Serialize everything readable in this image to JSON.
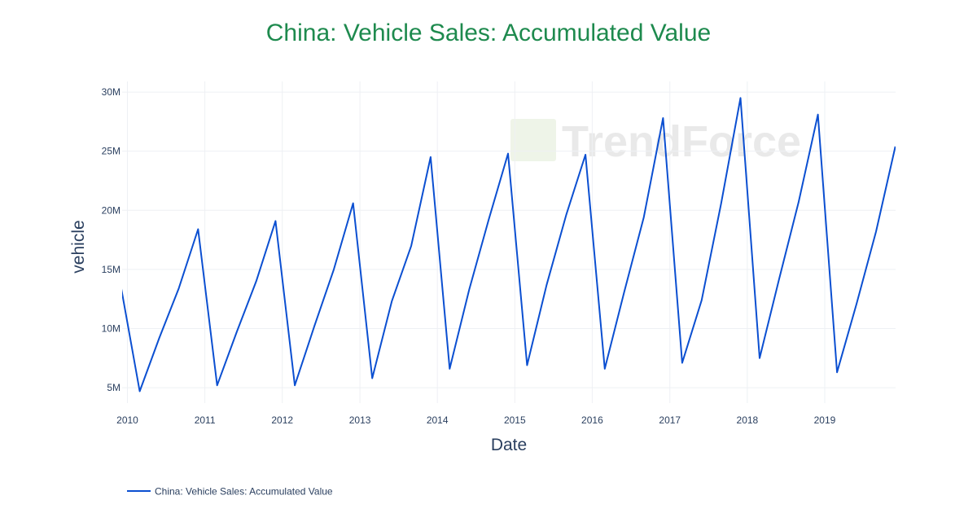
{
  "colors": {
    "title": "#1e8a4e",
    "line": "#0b4fd1",
    "grid": "#eef0f4",
    "axis_text": "#2a3f5f",
    "watermark": "#e6e6e6",
    "watermark_logo": "#e8efdf"
  },
  "watermark_text": "TrendForce",
  "chart_data": {
    "type": "line",
    "title": "China: Vehicle Sales: Accumulated Value",
    "xlabel": "Date",
    "ylabel": "vehicle",
    "xlim": [
      "2009-12-07",
      "2019-12-01"
    ],
    "ylim": [
      3700000,
      30900000
    ],
    "grid": true,
    "legend_position": "bottom-left",
    "x_ticks": [
      "2010",
      "2011",
      "2012",
      "2013",
      "2014",
      "2015",
      "2016",
      "2017",
      "2018",
      "2019"
    ],
    "y_ticks": [
      {
        "value": 5000000,
        "label": "5M"
      },
      {
        "value": 10000000,
        "label": "10M"
      },
      {
        "value": 15000000,
        "label": "15M"
      },
      {
        "value": 20000000,
        "label": "20M"
      },
      {
        "value": 25000000,
        "label": "25M"
      },
      {
        "value": 30000000,
        "label": "30M"
      }
    ],
    "series": [
      {
        "name": "China: Vehicle Sales: Accumulated Value",
        "x": [
          "2009-12-01",
          "2010-02-28",
          "2010-05-31",
          "2010-08-31",
          "2010-11-30",
          "2011-02-28",
          "2011-05-31",
          "2011-08-31",
          "2011-11-30",
          "2012-02-29",
          "2012-05-31",
          "2012-08-31",
          "2012-11-30",
          "2013-02-28",
          "2013-05-31",
          "2013-08-31",
          "2013-11-30",
          "2014-02-28",
          "2014-05-31",
          "2014-08-31",
          "2014-11-30",
          "2015-02-28",
          "2015-05-31",
          "2015-08-31",
          "2015-11-30",
          "2016-02-29",
          "2016-05-31",
          "2016-08-31",
          "2016-11-30",
          "2017-02-28",
          "2017-05-31",
          "2017-08-31",
          "2017-11-30",
          "2018-02-28",
          "2018-05-31",
          "2018-08-31",
          "2018-11-30",
          "2019-02-28",
          "2019-05-31",
          "2019-08-31",
          "2019-11-30"
        ],
        "values": [
          13600000,
          4700000,
          9200000,
          13400000,
          18400000,
          5200000,
          9700000,
          14000000,
          19100000,
          5200000,
          10200000,
          15000000,
          20600000,
          5800000,
          12300000,
          17000000,
          24500000,
          6600000,
          13300000,
          19200000,
          24800000,
          6900000,
          13700000,
          19600000,
          24700000,
          6600000,
          13100000,
          19400000,
          27800000,
          7100000,
          12400000,
          20600000,
          29500000,
          7500000,
          14200000,
          20700000,
          28100000,
          6300000,
          12100000,
          18200000,
          25400000
        ]
      }
    ]
  }
}
